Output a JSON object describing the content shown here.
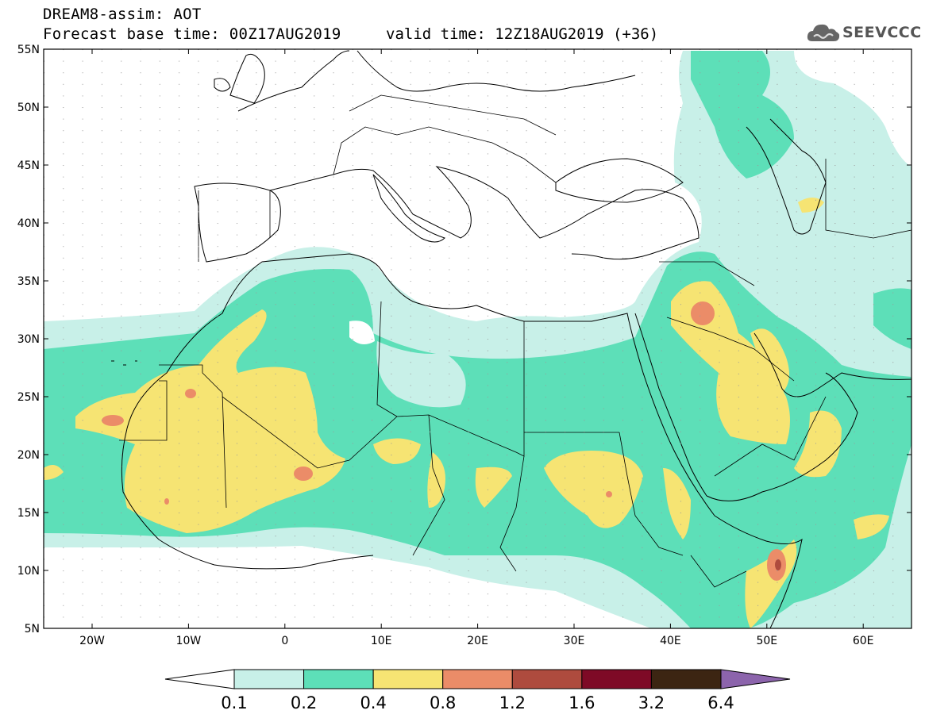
{
  "header": {
    "title": "DREAM8-assim: AOT",
    "base_time": "Forecast base time: 00Z17AUG2019",
    "valid_time": "valid time: 12Z18AUG2019 (+36)"
  },
  "logo": {
    "text": "SEEVCCC",
    "icon": "cloud-icon"
  },
  "map": {
    "lat_labels": [
      "55N",
      "50N",
      "45N",
      "40N",
      "35N",
      "30N",
      "25N",
      "20N",
      "15N",
      "10N",
      "5N"
    ],
    "lon_labels": [
      "20W",
      "10W",
      "0",
      "10E",
      "20E",
      "30E",
      "40E",
      "50E",
      "60E"
    ],
    "colors": {
      "ocean": "#ffffff",
      "border": "#000000"
    }
  },
  "colorbar": {
    "labels": [
      "0.1",
      "0.2",
      "0.4",
      "0.8",
      "1.2",
      "1.6",
      "3.2",
      "6.4"
    ],
    "colors": [
      "#ffffff",
      "#c8f0e8",
      "#5ddfb8",
      "#f6e473",
      "#eb8c68",
      "#ae4b3e",
      "#7e0a26",
      "#3c2512",
      "#8c64ac"
    ]
  }
}
